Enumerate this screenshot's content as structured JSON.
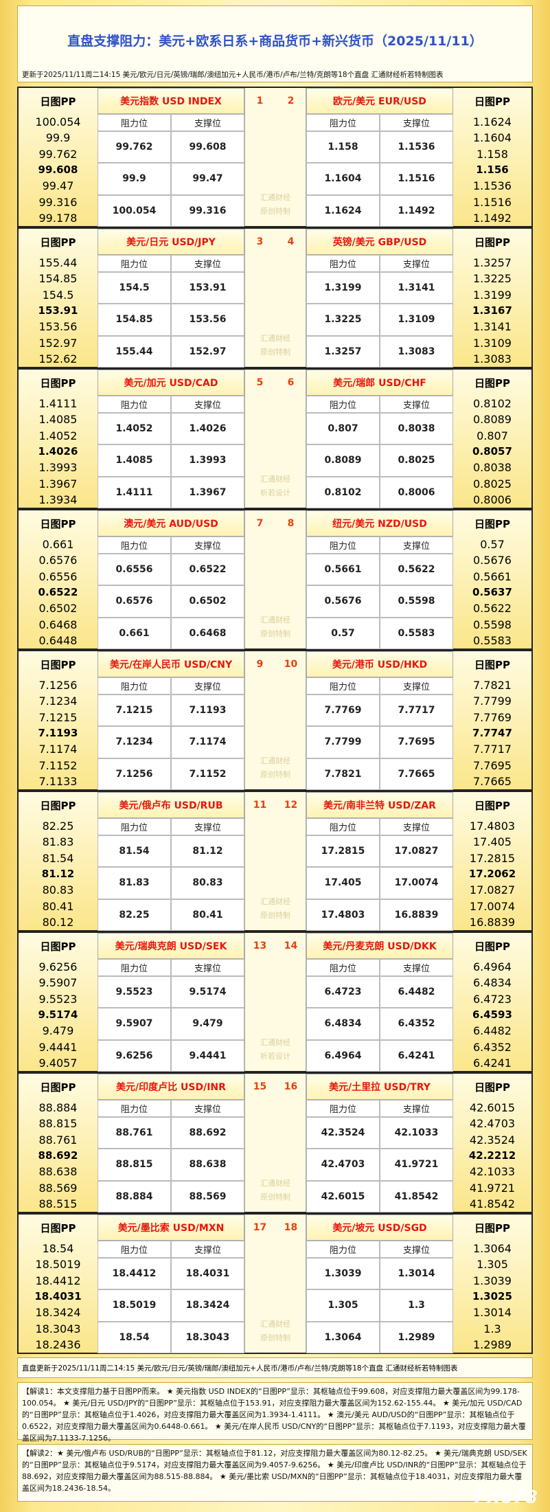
{
  "header": {
    "title": "直盘支撑阻力：美元+欧系日系+商品货币+新兴货币（2025/11/11）",
    "subtitle": "更新于2025/11/11周二14:15 美元/欧元/日元/英镑/瑞郎/澳纽加元+人民币/港币/卢布/兰特/克朗等18个直盘 汇通财经析若特制图表"
  },
  "labels": {
    "pp": "日图PP",
    "resistance": "阻力位",
    "support": "支撑位"
  },
  "blocks": [
    {
      "left": {
        "name": "美元指数 USD INDEX",
        "number": 1,
        "pp": [
          100.054,
          99.9,
          99.762,
          99.608,
          99.47,
          99.316,
          99.178
        ],
        "rows": [
          [
            99.762,
            99.608
          ],
          [
            99.9,
            99.47
          ],
          [
            100.054,
            99.316
          ]
        ]
      },
      "right": {
        "name": "欧元/美元 EUR/USD",
        "number": 2,
        "pp": [
          1.1624,
          1.1604,
          1.158,
          1.156,
          1.1536,
          1.1516,
          1.1492
        ],
        "rows": [
          [
            1.158,
            1.1536
          ],
          [
            1.1604,
            1.1516
          ],
          [
            1.1624,
            1.1492
          ]
        ]
      },
      "watermark": [
        "汇通财经",
        "原创特制"
      ]
    },
    {
      "left": {
        "name": "美元/日元 USD/JPY",
        "number": 3,
        "pp": [
          155.44,
          154.85,
          154.5,
          153.91,
          153.56,
          152.97,
          152.62
        ],
        "rows": [
          [
            154.5,
            153.91
          ],
          [
            154.85,
            153.56
          ],
          [
            155.44,
            152.97
          ]
        ]
      },
      "right": {
        "name": "英镑/美元 GBP/USD",
        "number": 4,
        "pp": [
          1.3257,
          1.3225,
          1.3199,
          1.3167,
          1.3141,
          1.3109,
          1.3083
        ],
        "rows": [
          [
            1.3199,
            1.3141
          ],
          [
            1.3225,
            1.3109
          ],
          [
            1.3257,
            1.3083
          ]
        ]
      },
      "watermark": [
        "汇通财经",
        "原创特制"
      ]
    },
    {
      "left": {
        "name": "美元/加元 USD/CAD",
        "number": 5,
        "pp": [
          1.4111,
          1.4085,
          1.4052,
          1.4026,
          1.3993,
          1.3967,
          1.3934
        ],
        "rows": [
          [
            1.4052,
            1.4026
          ],
          [
            1.4085,
            1.3993
          ],
          [
            1.4111,
            1.3967
          ]
        ]
      },
      "right": {
        "name": "美元/瑞郎 USD/CHF",
        "number": 6,
        "pp": [
          0.8102,
          0.8089,
          0.807,
          0.8057,
          0.8038,
          0.8025,
          0.8006
        ],
        "rows": [
          [
            0.807,
            0.8038
          ],
          [
            0.8089,
            0.8025
          ],
          [
            0.8102,
            0.8006
          ]
        ]
      },
      "watermark": [
        "汇通财经",
        "析若设计"
      ]
    },
    {
      "left": {
        "name": "澳元/美元 AUD/USD",
        "number": 7,
        "pp": [
          0.661,
          0.6576,
          0.6556,
          0.6522,
          0.6502,
          0.6468,
          0.6448
        ],
        "rows": [
          [
            0.6556,
            0.6522
          ],
          [
            0.6576,
            0.6502
          ],
          [
            0.661,
            0.6468
          ]
        ]
      },
      "right": {
        "name": "纽元/美元 NZD/USD",
        "number": 8,
        "pp": [
          0.57,
          0.5676,
          0.5661,
          0.5637,
          0.5622,
          0.5598,
          0.5583
        ],
        "rows": [
          [
            0.5661,
            0.5622
          ],
          [
            0.5676,
            0.5598
          ],
          [
            0.57,
            0.5583
          ]
        ]
      },
      "watermark": [
        "汇通财经",
        "原创特制"
      ]
    },
    {
      "left": {
        "name": "美元/在岸人民币 USD/CNY",
        "number": 9,
        "pp": [
          7.1256,
          7.1234,
          7.1215,
          7.1193,
          7.1174,
          7.1152,
          7.1133
        ],
        "rows": [
          [
            7.1215,
            7.1193
          ],
          [
            7.1234,
            7.1174
          ],
          [
            7.1256,
            7.1152
          ]
        ]
      },
      "right": {
        "name": "美元/港币 USD/HKD",
        "number": 10,
        "pp": [
          7.7821,
          7.7799,
          7.7769,
          7.7747,
          7.7717,
          7.7695,
          7.7665
        ],
        "rows": [
          [
            7.7769,
            7.7717
          ],
          [
            7.7799,
            7.7695
          ],
          [
            7.7821,
            7.7665
          ]
        ]
      },
      "watermark": [
        "汇通财经",
        "原创特制"
      ]
    },
    {
      "left": {
        "name": "美元/俄卢布 USD/RUB",
        "number": 11,
        "pp": [
          82.25,
          81.83,
          81.54,
          81.12,
          80.83,
          80.41,
          80.12
        ],
        "rows": [
          [
            81.54,
            81.12
          ],
          [
            81.83,
            80.83
          ],
          [
            82.25,
            80.41
          ]
        ]
      },
      "right": {
        "name": "美元/南非兰特 USD/ZAR",
        "number": 12,
        "pp": [
          17.4803,
          17.405,
          17.2815,
          17.2062,
          17.0827,
          17.0074,
          16.8839
        ],
        "rows": [
          [
            17.2815,
            17.0827
          ],
          [
            17.405,
            17.0074
          ],
          [
            17.4803,
            16.8839
          ]
        ]
      },
      "watermark": [
        "汇通财经",
        "原创特制"
      ]
    },
    {
      "left": {
        "name": "美元/瑞典克朗 USD/SEK",
        "number": 13,
        "pp": [
          9.6256,
          9.5907,
          9.5523,
          9.5174,
          9.479,
          9.4441,
          9.4057
        ],
        "rows": [
          [
            9.5523,
            9.5174
          ],
          [
            9.5907,
            9.479
          ],
          [
            9.6256,
            9.4441
          ]
        ]
      },
      "right": {
        "name": "美元/丹麦克朗 USD/DKK",
        "number": 14,
        "pp": [
          6.4964,
          6.4834,
          6.4723,
          6.4593,
          6.4482,
          6.4352,
          6.4241
        ],
        "rows": [
          [
            6.4723,
            6.4482
          ],
          [
            6.4834,
            6.4352
          ],
          [
            6.4964,
            6.4241
          ]
        ]
      },
      "watermark": [
        "汇通财经",
        "析若设计"
      ]
    },
    {
      "left": {
        "name": "美元/印度卢比 USD/INR",
        "number": 15,
        "pp": [
          88.884,
          88.815,
          88.761,
          88.692,
          88.638,
          88.569,
          88.515
        ],
        "rows": [
          [
            88.761,
            88.692
          ],
          [
            88.815,
            88.638
          ],
          [
            88.884,
            88.569
          ]
        ]
      },
      "right": {
        "name": "美元/土里拉 USD/TRY",
        "number": 16,
        "pp": [
          42.6015,
          42.4703,
          42.3524,
          42.2212,
          42.1033,
          41.9721,
          41.8542
        ],
        "rows": [
          [
            42.3524,
            42.1033
          ],
          [
            42.4703,
            41.9721
          ],
          [
            42.6015,
            41.8542
          ]
        ]
      },
      "watermark": [
        "汇通财经",
        "原创特制"
      ]
    },
    {
      "left": {
        "name": "美元/墨比索 USD/MXN",
        "number": 17,
        "pp": [
          18.54,
          18.5019,
          18.4412,
          18.4031,
          18.3424,
          18.3043,
          18.2436
        ],
        "rows": [
          [
            18.4412,
            18.4031
          ],
          [
            18.5019,
            18.3424
          ],
          [
            18.54,
            18.3043
          ]
        ]
      },
      "right": {
        "name": "美元/坡元 USD/SGD",
        "number": 18,
        "pp": [
          1.3064,
          1.305,
          1.3039,
          1.3025,
          1.3014,
          1.3,
          1.2989
        ],
        "rows": [
          [
            1.3039,
            1.3014
          ],
          [
            1.305,
            1.3
          ],
          [
            1.3064,
            1.2989
          ]
        ]
      },
      "watermark": [
        "汇通财经",
        "原创特制"
      ]
    }
  ],
  "footer": "直盘更新于2025/11/11周二14:15 美元/欧元/日元/英镑/瑞郎/澳纽加元+人民币/港币/卢布/兰特/克朗等18个直盘 汇通财经析若特制图表",
  "notes": [
    "【解读1：本文支撑阻力基于日图PP而来。 ★ 美元指数 USD INDEX的“日图PP”显示：其枢轴点位于99.608，对应支撑阻力最大覆盖区间为99.178-100.054。 ★ 美元/日元 USD/JPY的“日图PP”显示：其枢轴点位于153.91，对应支撑阻力最大覆盖区间为152.62-155.44。 ★ 美元/加元 USD/CAD的“日图PP”显示：其枢轴点位于1.4026，对应支撑阻力最大覆盖区间为1.3934-1.4111。 ★ 澳元/美元 AUD/USD的“日图PP”显示：其枢轴点位于0.6522，对应支撑阻力最大覆盖区间为0.6448-0.661。 ★ 美元/在岸人民币 USD/CNY的“日图PP”显示：其枢轴点位于7.1193，对应支撑阻力最大覆盖区间为7.1133-7.1256。",
    "【解读2：★ 美元/俄卢布 USD/RUB的“日图PP”显示：其枢轴点位于81.12，对应支撑阻力最大覆盖区间为80.12-82.25。 ★ 美元/瑞典克朗 USD/SEK的“日图PP”显示：其枢轴点位于9.5174，对应支撑阻力最大覆盖区间为9.4057-9.6256。 ★ 美元/印度卢比 USD/INR的“日图PP”显示：其枢轴点位于88.692，对应支撑阻力最大覆盖区间为88.515-88.884。 ★ 美元/墨比索 USD/MXN的“日图PP”显示：其枢轴点位于18.4031，对应支撑阻力最大覆盖区间为18.2436-18.54。"
  ],
  "watermark": "FX678"
}
